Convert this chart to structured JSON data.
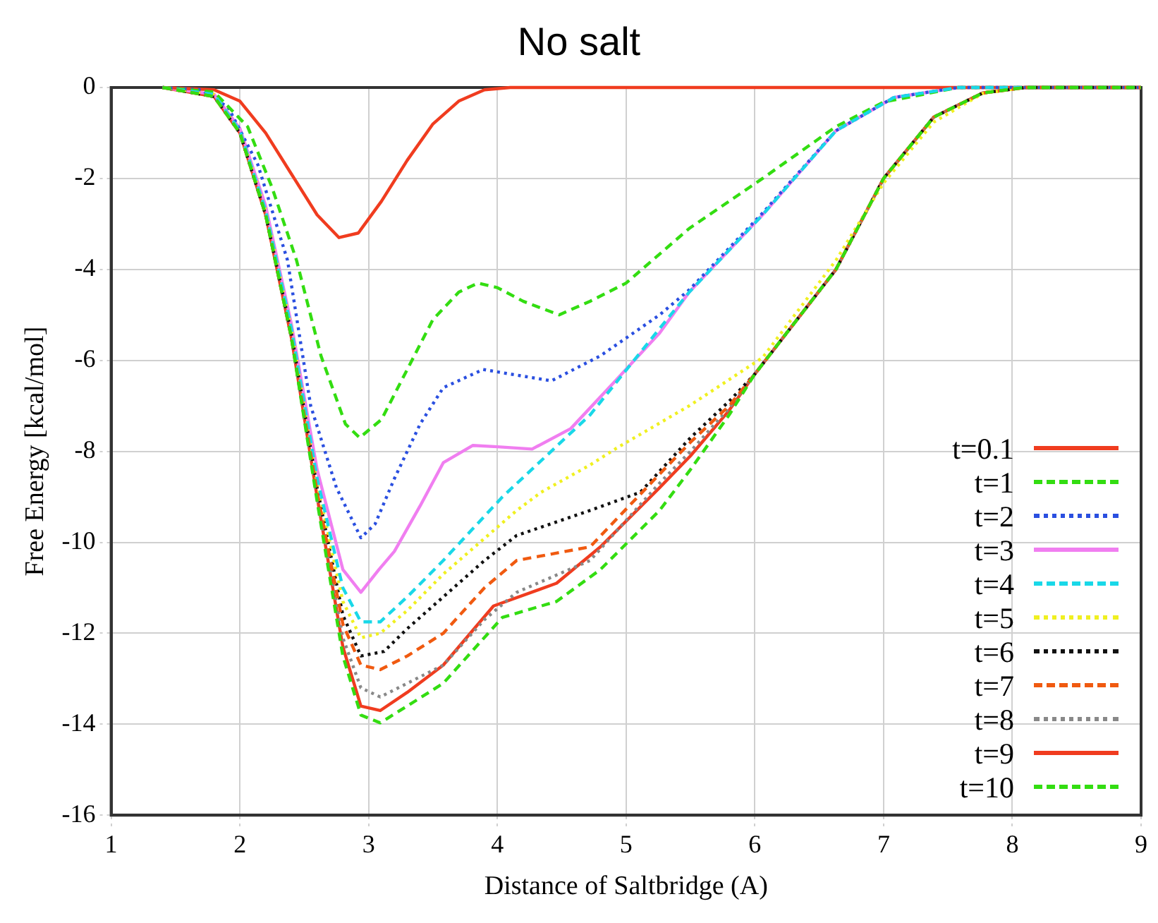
{
  "chart_data": {
    "type": "line",
    "title": "No salt",
    "xlabel": "Distance of Saltbridge (A)",
    "ylabel": "Free Energy [kcal/mol]",
    "xlim": [
      1,
      9
    ],
    "xticks": [
      1,
      2,
      3,
      4,
      5,
      6,
      7,
      8,
      9
    ],
    "ylim": [
      -16,
      0
    ],
    "yticks": [
      -16,
      -14,
      -12,
      -10,
      -8,
      -6,
      -4,
      -2,
      0
    ],
    "grid": true,
    "legend": "bottom right",
    "marker": "none",
    "series": [
      {
        "name": "t=0.1",
        "color": "#f03c1f",
        "line_style": "solid",
        "x": [
          1.4,
          1.8,
          2.0,
          2.2,
          2.4,
          2.6,
          2.77,
          2.92,
          3.1,
          3.3,
          3.5,
          3.7,
          3.9,
          4.1,
          9
        ],
        "values": [
          0,
          -0.05,
          -0.3,
          -1.0,
          -1.9,
          -2.8,
          -3.3,
          -3.2,
          -2.5,
          -1.6,
          -0.8,
          -0.3,
          -0.05,
          0,
          0
        ]
      },
      {
        "name": "t=1",
        "color": "#33dd11",
        "line_style": "dashed",
        "x": [
          1.4,
          1.8,
          2.06,
          2.25,
          2.44,
          2.63,
          2.82,
          2.93,
          3.1,
          3.3,
          3.5,
          3.7,
          3.85,
          4.0,
          4.2,
          4.48,
          4.72,
          5.0,
          5.49,
          6.06,
          6.63,
          7.0,
          7.58,
          9
        ],
        "values": [
          0,
          -0.1,
          -0.86,
          -2.2,
          -3.8,
          -5.9,
          -7.4,
          -7.7,
          -7.3,
          -6.2,
          -5.1,
          -4.5,
          -4.3,
          -4.4,
          -4.7,
          -5.0,
          -4.7,
          -4.3,
          -3.1,
          -2.0,
          -0.86,
          -0.32,
          0,
          0
        ]
      },
      {
        "name": "t=2",
        "color": "#2a4fe0",
        "line_style": "dotted",
        "x": [
          1.4,
          1.7,
          1.91,
          2.14,
          2.37,
          2.55,
          2.75,
          2.94,
          3.05,
          3.2,
          3.4,
          3.58,
          3.89,
          4.1,
          4.42,
          4.8,
          5.26,
          5.49,
          6.06,
          6.63,
          7.08,
          7.58,
          9
        ],
        "values": [
          0,
          -0.05,
          -0.44,
          -1.7,
          -3.8,
          -7.0,
          -8.8,
          -9.9,
          -9.6,
          -8.6,
          -7.4,
          -6.6,
          -6.2,
          -6.3,
          -6.45,
          -5.9,
          -5.0,
          -4.45,
          -2.76,
          -0.95,
          -0.22,
          0,
          0
        ]
      },
      {
        "name": "t=3",
        "color": "#f07ef0",
        "line_style": "solid",
        "x": [
          1.4,
          1.8,
          2.0,
          2.2,
          2.4,
          2.6,
          2.8,
          2.94,
          3.08,
          3.2,
          3.4,
          3.58,
          3.81,
          4.0,
          4.27,
          4.57,
          4.9,
          5.26,
          5.49,
          6.06,
          6.63,
          7.08,
          7.58,
          9
        ],
        "values": [
          0,
          -0.15,
          -0.9,
          -2.6,
          -5.2,
          -8.4,
          -10.6,
          -11.1,
          -10.6,
          -10.2,
          -9.2,
          -8.25,
          -7.87,
          -7.9,
          -7.95,
          -7.5,
          -6.5,
          -5.4,
          -4.5,
          -2.8,
          -0.95,
          -0.22,
          0,
          0
        ]
      },
      {
        "name": "t=4",
        "color": "#19d8e8",
        "line_style": "dashed",
        "x": [
          1.4,
          1.8,
          2.0,
          2.2,
          2.4,
          2.6,
          2.8,
          2.94,
          3.09,
          3.3,
          3.58,
          4.04,
          4.72,
          5.26,
          5.49,
          6.06,
          6.63,
          7.08,
          7.58,
          9
        ],
        "values": [
          0,
          -0.15,
          -0.95,
          -2.7,
          -5.3,
          -8.6,
          -11.0,
          -11.75,
          -11.75,
          -11.2,
          -10.4,
          -9.0,
          -7.2,
          -5.3,
          -4.5,
          -2.8,
          -0.95,
          -0.22,
          0,
          0
        ]
      },
      {
        "name": "t=5",
        "color": "#f0f020",
        "line_style": "dotted",
        "x": [
          1.4,
          1.8,
          2.0,
          2.2,
          2.4,
          2.6,
          2.8,
          2.94,
          3.09,
          3.3,
          3.58,
          4.15,
          4.34,
          4.72,
          4.92,
          5.49,
          6.06,
          6.63,
          7.0,
          7.39,
          7.77,
          8.1,
          9
        ],
        "values": [
          0,
          -0.15,
          -0.95,
          -2.7,
          -5.3,
          -8.7,
          -11.3,
          -12.1,
          -12.0,
          -11.5,
          -10.7,
          -9.3,
          -8.9,
          -8.3,
          -7.94,
          -7.0,
          -5.94,
          -3.8,
          -2.1,
          -0.76,
          -0.13,
          0,
          0
        ]
      },
      {
        "name": "t=6",
        "color": "#111111",
        "line_style": "dotted",
        "x": [
          1.4,
          1.8,
          2.0,
          2.2,
          2.4,
          2.6,
          2.8,
          2.94,
          3.12,
          3.3,
          3.58,
          3.9,
          4.15,
          4.72,
          5.11,
          5.5,
          5.8,
          6.0,
          6.63,
          7.0,
          7.39,
          7.77,
          8.1,
          9
        ],
        "values": [
          0,
          -0.2,
          -1.0,
          -2.8,
          -5.4,
          -8.8,
          -11.6,
          -12.5,
          -12.4,
          -11.9,
          -11.2,
          -10.4,
          -9.85,
          -9.3,
          -8.9,
          -7.7,
          -6.9,
          -6.3,
          -4.0,
          -2.0,
          -0.65,
          -0.12,
          0,
          0
        ]
      },
      {
        "name": "t=7",
        "color": "#f05a10",
        "line_style": "dashed",
        "x": [
          1.4,
          1.8,
          2.0,
          2.2,
          2.4,
          2.6,
          2.8,
          2.94,
          3.09,
          3.3,
          3.58,
          3.9,
          4.15,
          4.72,
          5.26,
          5.5,
          5.8,
          6.0,
          6.63,
          7.0,
          7.39,
          7.77,
          8.1,
          9
        ],
        "values": [
          0,
          -0.2,
          -1.0,
          -2.8,
          -5.5,
          -8.9,
          -11.8,
          -12.7,
          -12.8,
          -12.5,
          -12.0,
          -11.0,
          -10.4,
          -10.1,
          -8.5,
          -7.8,
          -7.0,
          -6.3,
          -4.0,
          -2.0,
          -0.65,
          -0.12,
          0,
          0
        ]
      },
      {
        "name": "t=8",
        "color": "#888888",
        "line_style": "dotted",
        "x": [
          1.4,
          1.8,
          2.0,
          2.2,
          2.4,
          2.6,
          2.8,
          2.94,
          3.09,
          3.3,
          3.58,
          3.9,
          4.15,
          4.72,
          5.26,
          5.5,
          5.8,
          6.0,
          6.63,
          7.0,
          7.39,
          7.77,
          8.1,
          9
        ],
        "values": [
          0,
          -0.2,
          -1.0,
          -2.8,
          -5.5,
          -9.0,
          -12.1,
          -13.2,
          -13.4,
          -13.1,
          -12.7,
          -11.7,
          -11.1,
          -10.4,
          -8.7,
          -8.0,
          -7.05,
          -6.3,
          -4.0,
          -2.0,
          -0.65,
          -0.12,
          0,
          0
        ]
      },
      {
        "name": "t=9",
        "color": "#f03c1f",
        "line_style": "solid",
        "x": [
          1.4,
          1.8,
          2.0,
          2.2,
          2.4,
          2.6,
          2.8,
          2.94,
          3.09,
          3.3,
          3.58,
          3.97,
          4.46,
          4.8,
          5.26,
          5.5,
          5.8,
          6.0,
          6.63,
          7.0,
          7.39,
          7.77,
          8.1,
          9
        ],
        "values": [
          0,
          -0.2,
          -1.0,
          -2.8,
          -5.5,
          -9.0,
          -12.3,
          -13.6,
          -13.7,
          -13.3,
          -12.7,
          -11.4,
          -10.9,
          -10.1,
          -8.8,
          -8.1,
          -7.1,
          -6.3,
          -4.0,
          -2.0,
          -0.65,
          -0.12,
          0,
          0
        ]
      },
      {
        "name": "t=10",
        "color": "#33dd11",
        "line_style": "dashed",
        "x": [
          1.4,
          1.8,
          2.0,
          2.2,
          2.4,
          2.6,
          2.8,
          2.94,
          3.09,
          3.3,
          3.58,
          4.04,
          4.46,
          4.8,
          5.26,
          5.5,
          5.8,
          6.0,
          6.63,
          7.0,
          7.39,
          7.77,
          8.1,
          9
        ],
        "values": [
          0,
          -0.2,
          -1.0,
          -2.8,
          -5.5,
          -9.1,
          -12.5,
          -13.8,
          -13.97,
          -13.6,
          -13.1,
          -11.65,
          -11.3,
          -10.6,
          -9.3,
          -8.4,
          -7.2,
          -6.3,
          -4.0,
          -2.0,
          -0.65,
          -0.12,
          0,
          0
        ]
      }
    ]
  }
}
